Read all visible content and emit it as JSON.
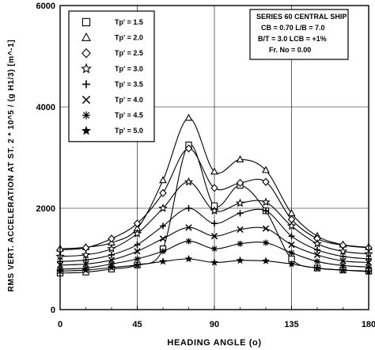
{
  "chart_data": {
    "type": "line",
    "xlabel": "HEADING ANGLE (o)",
    "ylabel": "RMS VERT. ACCELERATION AT ST. 2 * 10^5 / (g H1/3)   [m^-1]",
    "xlim": [
      0,
      180
    ],
    "ylim": [
      0,
      6000
    ],
    "x_ticks": [
      "0",
      "45",
      "90",
      "135",
      "180"
    ],
    "y_ticks": [
      "0",
      "2000",
      "4000",
      "6000"
    ],
    "grid": true,
    "legend_position": "top-left",
    "x": [
      0,
      15,
      30,
      45,
      60,
      75,
      90,
      105,
      120,
      135,
      150,
      165,
      180
    ],
    "series": [
      {
        "name": "Tp' = 1.5",
        "marker": "square",
        "values": [
          720,
          740,
          800,
          880,
          1200,
          3250,
          2050,
          2450,
          1950,
          1000,
          820,
          780,
          760
        ]
      },
      {
        "name": "Tp' = 2.0",
        "marker": "triangle",
        "values": [
          1200,
          1230,
          1320,
          1600,
          2550,
          3780,
          2720,
          2960,
          2750,
          1900,
          1450,
          1280,
          1230
        ]
      },
      {
        "name": "Tp' = 2.5",
        "marker": "diamond",
        "values": [
          1180,
          1220,
          1400,
          1700,
          2300,
          3180,
          2400,
          2500,
          2520,
          1780,
          1400,
          1270,
          1220
        ]
      },
      {
        "name": "Tp' = 3.0",
        "marker": "star-open",
        "values": [
          1050,
          1080,
          1200,
          1500,
          2000,
          2520,
          1950,
          2100,
          2120,
          1650,
          1300,
          1150,
          1100
        ]
      },
      {
        "name": "Tp' = 3.5",
        "marker": "plus",
        "values": [
          950,
          980,
          1080,
          1280,
          1650,
          2000,
          1700,
          1900,
          1950,
          1450,
          1180,
          1050,
          1000
        ]
      },
      {
        "name": "Tp' = 4.0",
        "marker": "x",
        "values": [
          880,
          900,
          980,
          1150,
          1400,
          1620,
          1450,
          1580,
          1600,
          1280,
          1080,
          960,
          930
        ]
      },
      {
        "name": "Tp' = 4.5",
        "marker": "asterisk",
        "values": [
          800,
          820,
          900,
          1000,
          1150,
          1350,
          1200,
          1300,
          1320,
          1120,
          950,
          870,
          840
        ]
      },
      {
        "name": "Tp' = 5.0",
        "marker": "star-filled",
        "values": [
          760,
          780,
          830,
          880,
          950,
          1000,
          930,
          970,
          960,
          900,
          820,
          780,
          750
        ]
      }
    ],
    "info_box": {
      "line1": "SERIES 60 CENTRAL SHIP",
      "line2": "CB = 0.70   L/B = 7.0",
      "line3": "B/T = 3.0   LCB = +1%",
      "line4": "Fr. No = 0.00"
    }
  }
}
